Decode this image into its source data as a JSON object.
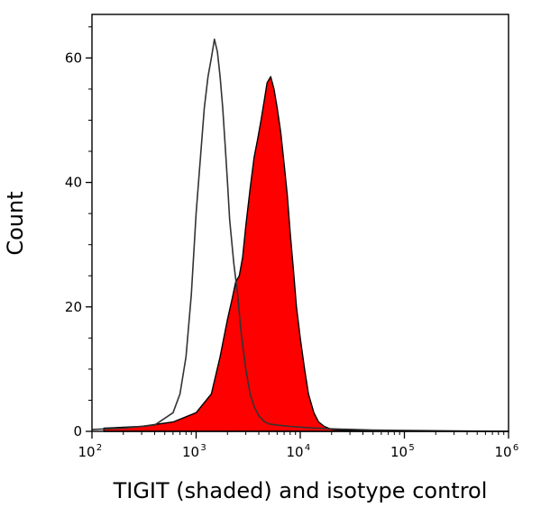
{
  "chart_data": {
    "type": "area",
    "title": "",
    "xlabel": "TIGIT (shaded) and isotype control",
    "ylabel": "Count",
    "xscale": "log",
    "xlim": [
      100,
      1000000
    ],
    "ylim": [
      0,
      67
    ],
    "y_ticks": [
      0,
      20,
      40,
      60
    ],
    "x_ticks": [
      {
        "base": "10",
        "exp": "2",
        "value": 100
      },
      {
        "base": "10",
        "exp": "3",
        "value": 1000
      },
      {
        "base": "10",
        "exp": "4",
        "value": 10000
      },
      {
        "base": "10",
        "exp": "5",
        "value": 100000
      },
      {
        "base": "10",
        "exp": "6",
        "value": 1000000
      }
    ],
    "series": [
      {
        "name": "TIGIT (shaded)",
        "style": "filled",
        "fill": "#ff0000",
        "stroke": "#000000",
        "x": [
          130,
          300,
          600,
          1000,
          1400,
          1700,
          2000,
          2200,
          2400,
          2600,
          2800,
          3000,
          3300,
          3600,
          3900,
          4200,
          4500,
          4800,
          5200,
          5600,
          6000,
          6500,
          7000,
          7500,
          8000,
          8600,
          9200,
          10000,
          11000,
          12000,
          13500,
          15000,
          17000,
          20000,
          25000,
          40000,
          100000,
          1000000
        ],
        "values": [
          0.5,
          0.8,
          1.5,
          3,
          6,
          12,
          18,
          21,
          24,
          25,
          28,
          33,
          39,
          44,
          47,
          50,
          53,
          56,
          57,
          55,
          52,
          48,
          43,
          38,
          32,
          26,
          20,
          15,
          10,
          6,
          3,
          1.5,
          0.8,
          0.3,
          0.2,
          0.1,
          0,
          0
        ]
      },
      {
        "name": "Isotype control",
        "style": "outline",
        "stroke": "#333333",
        "x": [
          100,
          200,
          400,
          600,
          700,
          800,
          900,
          1000,
          1100,
          1200,
          1300,
          1400,
          1500,
          1600,
          1700,
          1800,
          1900,
          2000,
          2100,
          2300,
          2500,
          2700,
          3000,
          3300,
          3600,
          4000,
          4500,
          5000,
          6000,
          8000,
          12000,
          20000,
          50000,
          200000,
          1000000
        ],
        "values": [
          0.3,
          0.5,
          1,
          3,
          6,
          12,
          22,
          35,
          44,
          52,
          57,
          60,
          63,
          61,
          57,
          52,
          46,
          40,
          34,
          27,
          22,
          16,
          10,
          6,
          4,
          2.5,
          1.6,
          1.2,
          1,
          0.8,
          0.6,
          0.4,
          0.2,
          0.1,
          0
        ]
      }
    ]
  }
}
